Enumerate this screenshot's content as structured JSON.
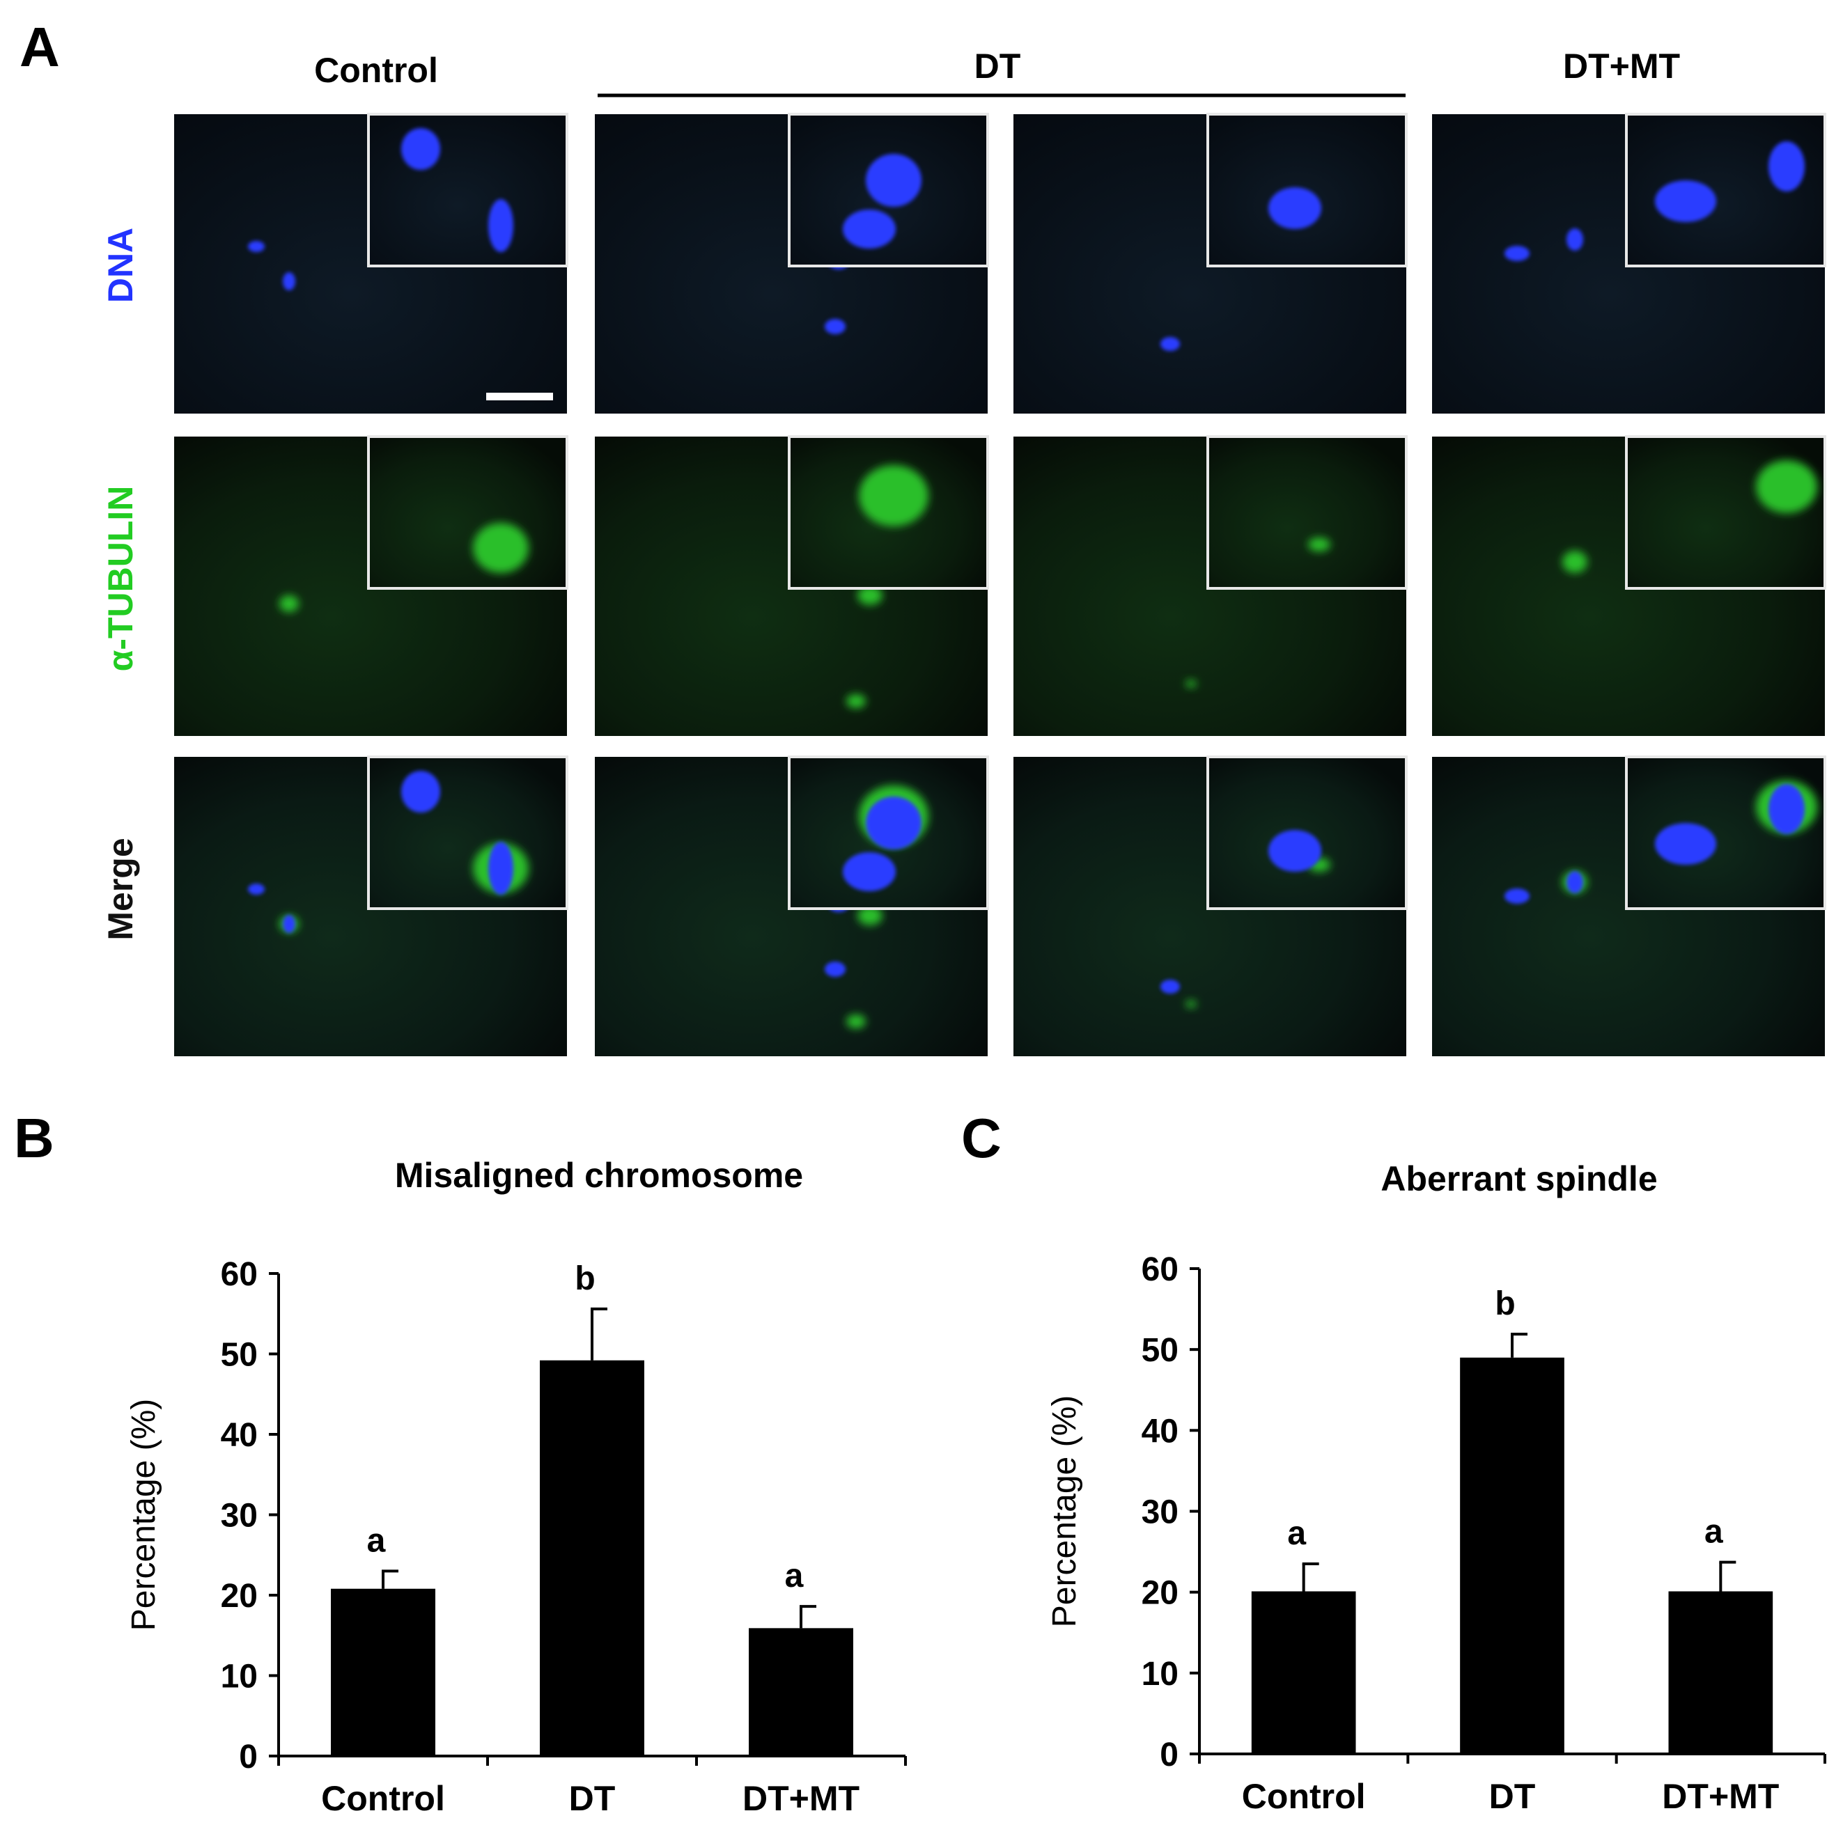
{
  "panel_a": {
    "letter": "A",
    "column_headers": [
      "Control",
      "DT",
      "DT+MT"
    ],
    "row_labels": [
      "DNA",
      "α-TUBULIN",
      "Merge"
    ],
    "row_label_colors": [
      "#2233ff",
      "#22cc22",
      "#111111"
    ],
    "microscopy": {
      "rows": [
        "dna",
        "tubulin",
        "merge"
      ],
      "columns": 4,
      "has_inset": true,
      "scale_bar": true
    }
  },
  "panel_b": {
    "letter": "B"
  },
  "panel_c": {
    "letter": "C"
  },
  "chart_data": [
    {
      "type": "bar",
      "title": "Misaligned chromosome",
      "ylabel": "Percentage (%)",
      "categories": [
        "Control",
        "DT",
        "DT+MT"
      ],
      "values": [
        20.8,
        49.2,
        15.9
      ],
      "errors": [
        2.2,
        6.4,
        2.7
      ],
      "significance": [
        "a",
        "b",
        "a"
      ],
      "ylim": [
        0,
        60
      ],
      "yticks": [
        "0",
        "10",
        "20",
        "30",
        "40",
        "50",
        "60"
      ],
      "bar_color": "#000000"
    },
    {
      "type": "bar",
      "title": "Aberrant spindle",
      "ylabel": "Percentage (%)",
      "categories": [
        "Control",
        "DT",
        "DT+MT"
      ],
      "values": [
        20.1,
        49.0,
        20.1
      ],
      "errors": [
        3.4,
        2.9,
        3.6
      ],
      "significance": [
        "a",
        "b",
        "a"
      ],
      "ylim": [
        0,
        60
      ],
      "yticks": [
        "0",
        "10",
        "20",
        "30",
        "40",
        "50",
        "60"
      ],
      "bar_color": "#000000"
    }
  ]
}
